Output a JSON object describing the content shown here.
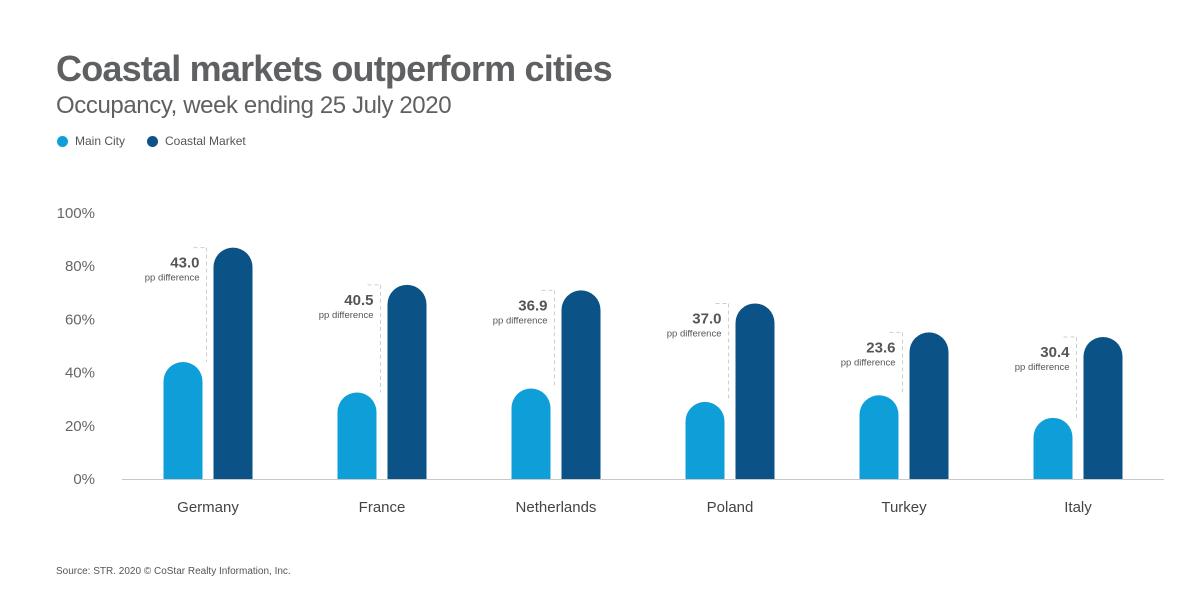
{
  "chart_data": {
    "type": "bar",
    "title": "Coastal markets outperform cities",
    "subtitle": "Occupancy, week ending 25 July 2020",
    "categories": [
      "Germany",
      "France",
      "Netherlands",
      "Poland",
      "Turkey",
      "Italy"
    ],
    "series": [
      {
        "name": "Main City",
        "color": "#0f9fd8",
        "values": [
          44.0,
          32.5,
          34.0,
          29.0,
          31.5,
          23.0
        ]
      },
      {
        "name": "Coastal Market",
        "color": "#0b5386",
        "values": [
          87.0,
          73.0,
          70.9,
          66.0,
          55.1,
          53.4
        ]
      }
    ],
    "differences": [
      "43.0",
      "40.5",
      "36.9",
      "37.0",
      "23.6",
      "30.4"
    ],
    "difference_label": "pp difference",
    "yticks": [
      "0%",
      "20%",
      "40%",
      "60%",
      "80%",
      "100%"
    ],
    "ylim": [
      0,
      100
    ],
    "legend_position": "top-left",
    "grid": false,
    "source": "Source: STR. 2020 © CoStar Realty Information, Inc."
  }
}
